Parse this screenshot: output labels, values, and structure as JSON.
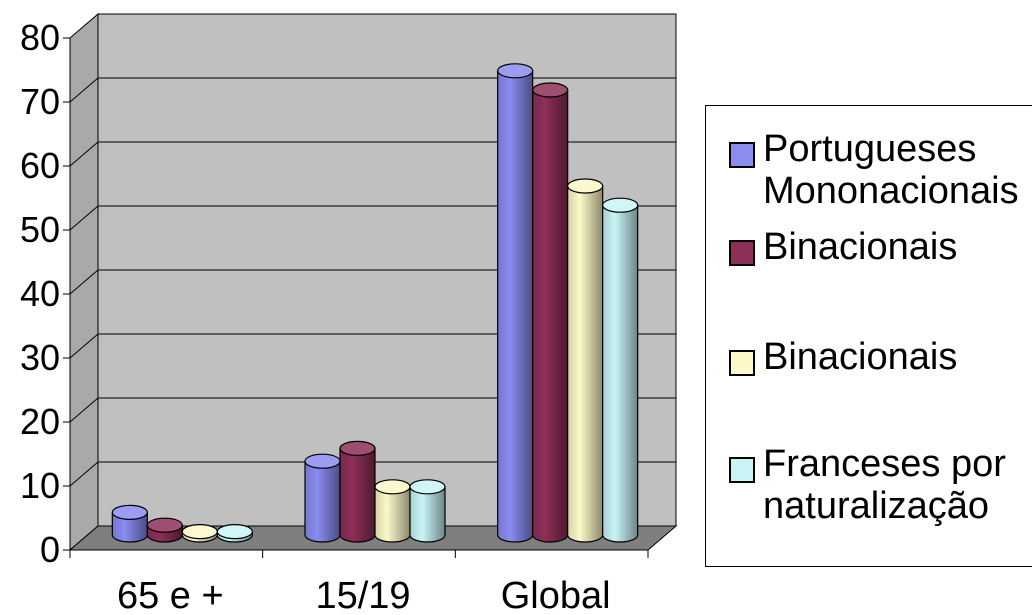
{
  "chart_data": {
    "type": "bar",
    "categories": [
      "65 e +",
      "15/19",
      "Global"
    ],
    "series": [
      {
        "name": "Portugueses Mononacionais",
        "values": [
          4,
          12,
          73
        ],
        "color": "#8a8cf0"
      },
      {
        "name": "Binacionais",
        "values": [
          2,
          14,
          70
        ],
        "color": "#8e2f58"
      },
      {
        "name": "Binacionais",
        "values": [
          1,
          8,
          55
        ],
        "color": "#fcf8c8"
      },
      {
        "name": "Franceses por naturalização",
        "values": [
          1,
          8,
          52
        ],
        "color": "#c8f4f6"
      }
    ],
    "yticks": [
      0,
      10,
      20,
      30,
      40,
      50,
      60,
      70,
      80
    ],
    "ylim": [
      0,
      80
    ],
    "grid": true,
    "legend_position": "right",
    "plot_background": "#c0c0c0",
    "floor_color": "#7f7f7f"
  },
  "legend": {
    "items": [
      {
        "lines": [
          "Portugueses",
          "Mononacionais"
        ]
      },
      {
        "lines": [
          "Binacionais"
        ]
      },
      {
        "lines": [
          "Binacionais"
        ]
      },
      {
        "lines": [
          "Franceses por",
          "naturalização"
        ]
      }
    ]
  }
}
